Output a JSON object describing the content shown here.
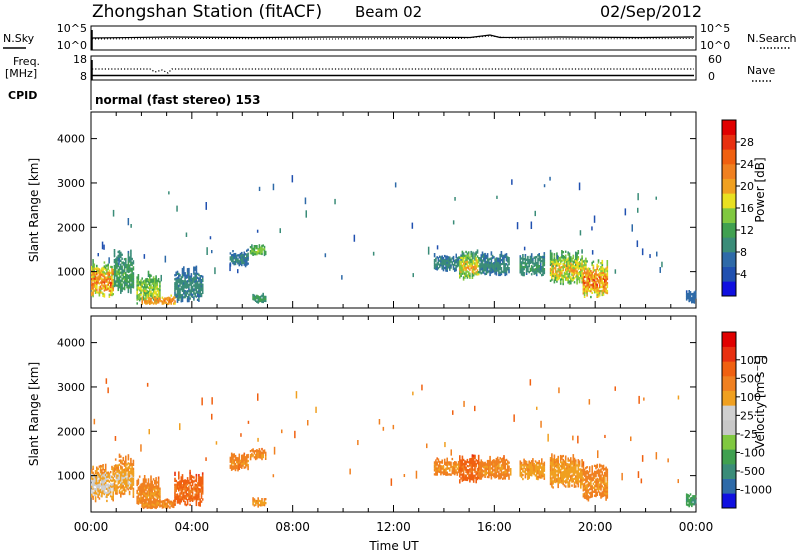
{
  "header": {
    "title": "Zhongshan Station (fitACF)",
    "beam": "Beam 02",
    "date": "02/Sep/2012"
  },
  "noise_panel": {
    "left_label": "N.Sky",
    "right_label": "N.Search",
    "left_ticks": [
      "10^5",
      "10^0"
    ],
    "right_ticks": [
      "10^5",
      "10^0"
    ]
  },
  "freq_panel": {
    "left_label_line1": "Freq.",
    "left_label_line2": "[MHz]",
    "right_label": "Nave",
    "left_ticks": [
      "18",
      "8"
    ],
    "right_ticks": [
      "60",
      "0"
    ]
  },
  "cpid_panel": {
    "label": "CPID",
    "text": "normal (fast stereo) 153"
  },
  "colors": {
    "power_scale": [
      "#1010e0",
      "#2050b0",
      "#2e6aa8",
      "#3a8c78",
      "#40a050",
      "#80c840",
      "#e8e020",
      "#f0a020",
      "#f08020",
      "#f06010",
      "#e83010",
      "#e00000"
    ],
    "velocity_scale": [
      "#e00000",
      "#e83010",
      "#f06010",
      "#f08020",
      "#f0a020",
      "#d0d0d0",
      "#c8c8c8",
      "#80c840",
      "#40a050",
      "#3a8c78",
      "#2e6aa8",
      "#1010e0"
    ]
  },
  "chart_data": [
    {
      "type": "heatmap",
      "quantity": "power",
      "ylabel": "Slant Range [km]",
      "ylim": [
        180,
        4600
      ],
      "yticks": [
        "1000",
        "2000",
        "3000",
        "4000"
      ],
      "xlim": [
        0,
        24
      ],
      "colorbar_label": "Power [dB]",
      "colorbar_range": [
        0,
        32
      ],
      "colorbar_ticks": [
        "4",
        "8",
        "12",
        "16",
        "20",
        "24",
        "28"
      ],
      "patches": [
        {
          "t0": 0.0,
          "t1": 0.9,
          "r0": 400,
          "r1": 1300,
          "v0": 6,
          "v1": 28
        },
        {
          "t0": 0.9,
          "t1": 1.7,
          "r0": 500,
          "r1": 1500,
          "v0": 6,
          "v1": 14
        },
        {
          "t0": 1.8,
          "t1": 2.7,
          "r0": 250,
          "r1": 1000,
          "v0": 8,
          "v1": 18
        },
        {
          "t0": 2.0,
          "t1": 3.3,
          "r0": 250,
          "r1": 450,
          "v0": 16,
          "v1": 24
        },
        {
          "t0": 3.3,
          "t1": 4.4,
          "r0": 300,
          "r1": 1100,
          "v0": 6,
          "v1": 10
        },
        {
          "t0": 6.3,
          "t1": 6.9,
          "r0": 1350,
          "r1": 1600,
          "v0": 8,
          "v1": 16
        },
        {
          "t0": 5.5,
          "t1": 6.2,
          "r0": 1100,
          "r1": 1500,
          "v0": 6,
          "v1": 9
        },
        {
          "t0": 6.4,
          "t1": 6.9,
          "r0": 280,
          "r1": 500,
          "v0": 8,
          "v1": 12
        },
        {
          "t0": 13.6,
          "t1": 14.7,
          "r0": 1000,
          "r1": 1400,
          "v0": 6,
          "v1": 10
        },
        {
          "t0": 14.6,
          "t1": 15.4,
          "r0": 800,
          "r1": 1500,
          "v0": 6,
          "v1": 22
        },
        {
          "t0": 15.4,
          "t1": 16.6,
          "r0": 900,
          "r1": 1450,
          "v0": 6,
          "v1": 10
        },
        {
          "t0": 17.0,
          "t1": 18.0,
          "r0": 900,
          "r1": 1400,
          "v0": 6,
          "v1": 12
        },
        {
          "t0": 18.2,
          "t1": 19.5,
          "r0": 700,
          "r1": 1500,
          "v0": 6,
          "v1": 22
        },
        {
          "t0": 19.5,
          "t1": 20.5,
          "r0": 400,
          "r1": 1300,
          "v0": 8,
          "v1": 28
        },
        {
          "t0": 23.6,
          "t1": 24.0,
          "r0": 280,
          "r1": 600,
          "v0": 4,
          "v1": 8
        }
      ]
    },
    {
      "type": "heatmap",
      "quantity": "velocity",
      "ylabel": "Slant Range [km]",
      "xlabel": "Time UT",
      "ylim": [
        180,
        4600
      ],
      "yticks": [
        "1000",
        "2000",
        "3000",
        "4000"
      ],
      "xlim": [
        0,
        24
      ],
      "xticks": [
        "00:00",
        "04:00",
        "08:00",
        "12:00",
        "16:00",
        "20:00",
        "00:00"
      ],
      "colorbar_label": "Velocity [m s^-1]",
      "colorbar_ticks": [
        "1000",
        "500",
        "100",
        "25",
        "-25",
        "-100",
        "-500",
        "-1000"
      ],
      "patches": [
        {
          "t0": 0.0,
          "t1": 0.9,
          "r0": 400,
          "r1": 1300,
          "v0": 2,
          "v1": 6
        },
        {
          "t0": 0.9,
          "t1": 1.7,
          "r0": 500,
          "r1": 1500,
          "v0": 2,
          "v1": 5
        },
        {
          "t0": 1.8,
          "t1": 2.7,
          "r0": 250,
          "r1": 1000,
          "v0": 2,
          "v1": 4
        },
        {
          "t0": 2.0,
          "t1": 3.3,
          "r0": 250,
          "r1": 450,
          "v0": 2,
          "v1": 4
        },
        {
          "t0": 3.3,
          "t1": 4.4,
          "r0": 300,
          "r1": 1100,
          "v0": 1,
          "v1": 3
        },
        {
          "t0": 6.3,
          "t1": 6.9,
          "r0": 1350,
          "r1": 1600,
          "v0": 2,
          "v1": 4
        },
        {
          "t0": 5.5,
          "t1": 6.2,
          "r0": 1100,
          "r1": 1500,
          "v0": 2,
          "v1": 4
        },
        {
          "t0": 6.4,
          "t1": 6.9,
          "r0": 280,
          "r1": 500,
          "v0": 3,
          "v1": 4
        },
        {
          "t0": 13.6,
          "t1": 14.7,
          "r0": 1000,
          "r1": 1400,
          "v0": 2,
          "v1": 4
        },
        {
          "t0": 14.6,
          "t1": 15.4,
          "r0": 800,
          "r1": 1500,
          "v0": 1,
          "v1": 3
        },
        {
          "t0": 15.4,
          "t1": 16.6,
          "r0": 900,
          "r1": 1450,
          "v0": 2,
          "v1": 4
        },
        {
          "t0": 17.0,
          "t1": 18.0,
          "r0": 900,
          "r1": 1400,
          "v0": 3,
          "v1": 4
        },
        {
          "t0": 18.2,
          "t1": 19.5,
          "r0": 700,
          "r1": 1500,
          "v0": 3,
          "v1": 4
        },
        {
          "t0": 19.5,
          "t1": 20.5,
          "r0": 400,
          "r1": 1300,
          "v0": 2,
          "v1": 4
        },
        {
          "t0": 23.6,
          "t1": 24.0,
          "r0": 280,
          "r1": 600,
          "v0": 7,
          "v1": 9
        }
      ]
    }
  ]
}
